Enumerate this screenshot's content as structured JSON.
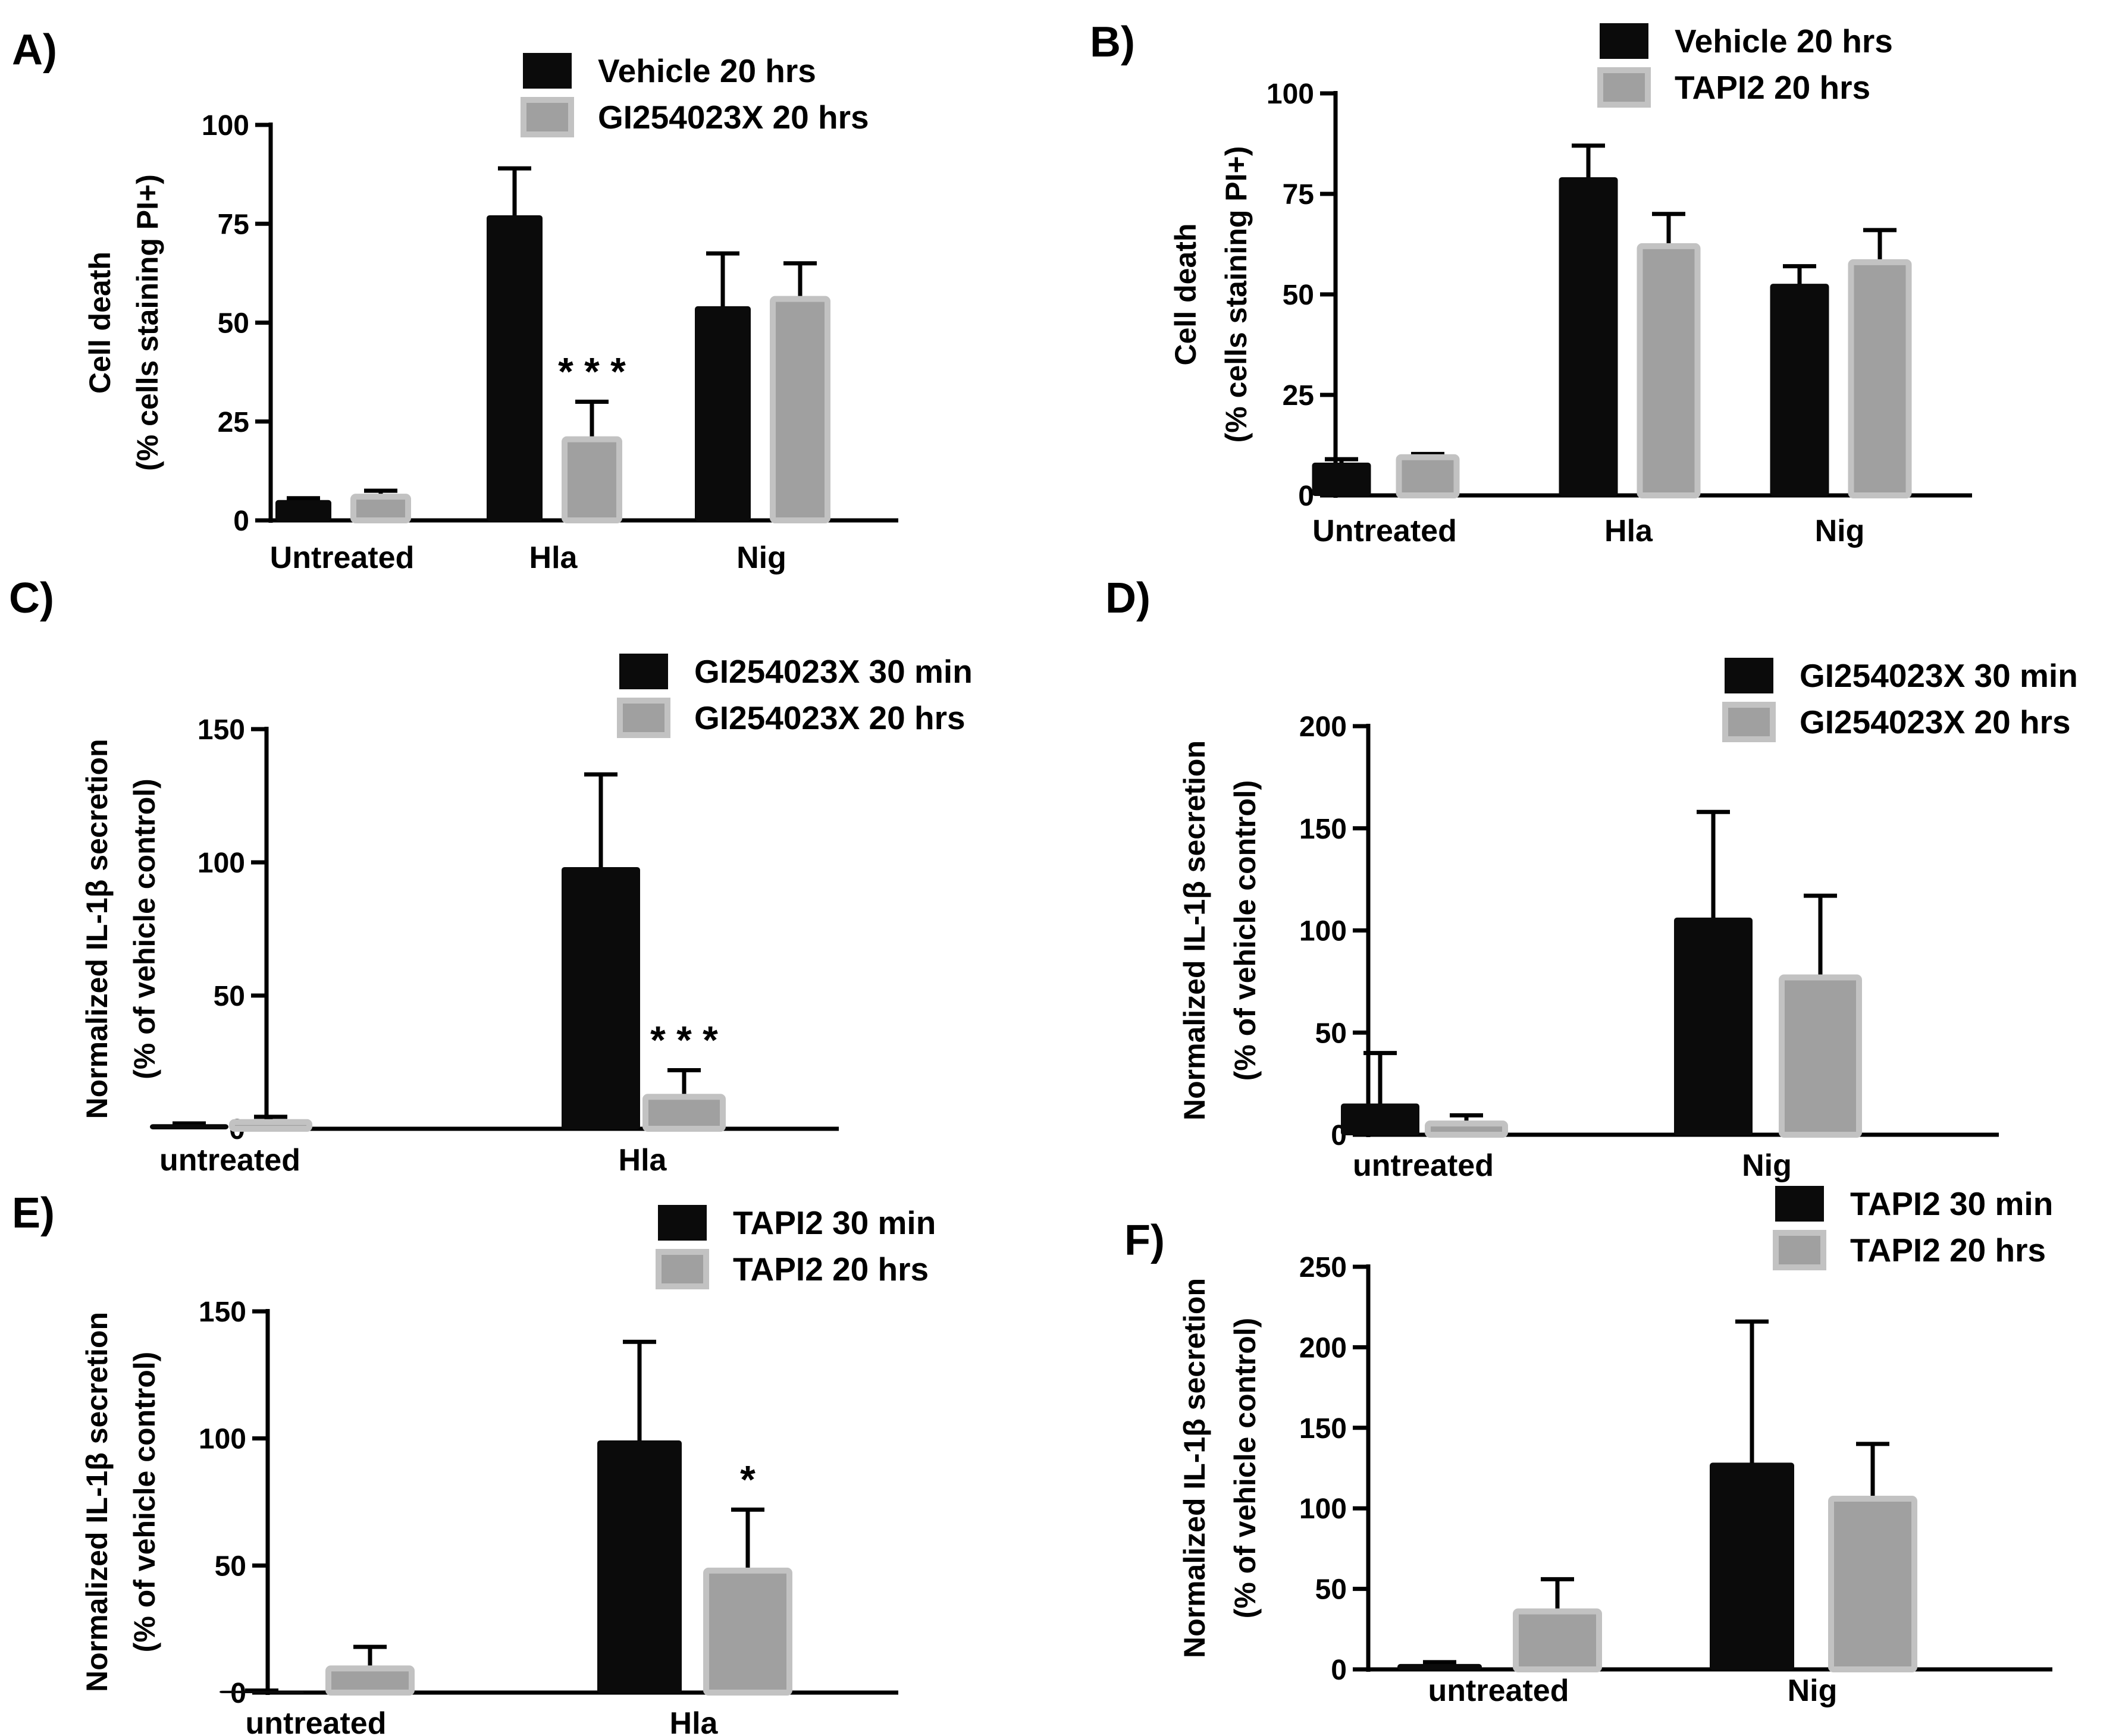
{
  "colors": {
    "series1_fill": "#0b0b0b",
    "series2_fill": "#a0a0a0",
    "series2_edge": "#c2c2c2",
    "axis": "#000000"
  },
  "chart_data": [
    {
      "id": "A",
      "panel_label": "A)",
      "type": "bar",
      "ylabel_line1": "Cell death",
      "ylabel_line2": "(% cells staining PI+)",
      "ylim": [
        0,
        100
      ],
      "yticks": [
        0,
        25,
        50,
        75,
        100
      ],
      "categories": [
        "Untreated",
        "Hla",
        "Nig"
      ],
      "series": [
        {
          "name": "Vehicle 20 hrs",
          "values": [
            5,
            77,
            54
          ],
          "errors": [
            0.6,
            12,
            13.5
          ]
        },
        {
          "name": "GI254023X 20 hrs",
          "values": [
            6,
            20.5,
            56
          ],
          "errors": [
            1.5,
            9.5,
            9
          ]
        }
      ],
      "annotations": [
        {
          "category": "Hla",
          "series": 1,
          "text": "***"
        }
      ]
    },
    {
      "id": "B",
      "panel_label": "B)",
      "type": "bar",
      "ylabel_line1": "Cell death",
      "ylabel_line2": "(% cells staining PI+)",
      "ylim": [
        0,
        100
      ],
      "yticks": [
        0,
        25,
        50,
        75,
        100
      ],
      "categories": [
        "Untreated",
        "Hla",
        "Nig"
      ],
      "series": [
        {
          "name": "Vehicle 20 hrs",
          "values": [
            8,
            79,
            52.5
          ],
          "errors": [
            1,
            8,
            4.5
          ]
        },
        {
          "name": "TAPI2 20 hrs",
          "values": [
            9.5,
            62,
            58
          ],
          "errors": [
            0.8,
            8,
            8
          ]
        }
      ],
      "annotations": []
    },
    {
      "id": "C",
      "panel_label": "C)",
      "type": "bar",
      "ylabel_line1": "Normalized IL-1β secretion",
      "ylabel_line2": "(% of vehicle control)",
      "ylim": [
        0,
        150
      ],
      "yticks": [
        0,
        50,
        100,
        150
      ],
      "categories": [
        "untreated",
        "Hla"
      ],
      "series": [
        {
          "name": "GI254023X 30 min",
          "values": [
            1.5,
            98
          ],
          "errors": [
            0.5,
            35
          ]
        },
        {
          "name": "GI254023X 20 hrs",
          "values": [
            2.5,
            12
          ],
          "errors": [
            2,
            10
          ]
        }
      ],
      "annotations": [
        {
          "category": "Hla",
          "series": 1,
          "text": "***"
        }
      ]
    },
    {
      "id": "D",
      "panel_label": "D)",
      "type": "bar",
      "ylabel_line1": "Normalized IL-1β secretion",
      "ylabel_line2": "(% of vehicle control)",
      "ylim": [
        0,
        200
      ],
      "yticks": [
        0,
        50,
        100,
        150,
        200
      ],
      "categories": [
        "untreated",
        "Nig"
      ],
      "series": [
        {
          "name": "GI254023X 30 min",
          "values": [
            15,
            106
          ],
          "errors": [
            25,
            52
          ]
        },
        {
          "name": "GI254023X 20 hrs",
          "values": [
            5.5,
            77
          ],
          "errors": [
            4,
            40
          ]
        }
      ],
      "annotations": []
    },
    {
      "id": "E",
      "panel_label": "E)",
      "type": "bar",
      "ylabel_line1": "Normalized IL-1β secretion",
      "ylabel_line2": "(% of vehicle control)",
      "ylim": [
        0,
        150
      ],
      "yticks": [
        0,
        50,
        100,
        150
      ],
      "categories": [
        "untreated",
        "Hla"
      ],
      "series": [
        {
          "name": "TAPI2 30 min",
          "values": [
            0.5,
            99
          ],
          "errors": [
            0.3,
            39
          ]
        },
        {
          "name": "TAPI2 20 hrs",
          "values": [
            9.5,
            48
          ],
          "errors": [
            8.5,
            24
          ]
        }
      ],
      "annotations": [
        {
          "category": "Hla",
          "series": 1,
          "text": "*"
        }
      ]
    },
    {
      "id": "F",
      "panel_label": "F)",
      "type": "bar",
      "ylabel_line1": "Normalized IL-1β secretion",
      "ylabel_line2": "(% of vehicle control)",
      "ylim": [
        0,
        250
      ],
      "yticks": [
        0,
        50,
        100,
        150,
        200,
        250
      ],
      "categories": [
        "untreated",
        "Nig"
      ],
      "series": [
        {
          "name": "TAPI2 30 min",
          "values": [
            3,
            128
          ],
          "errors": [
            1.5,
            88
          ]
        },
        {
          "name": "TAPI2 20 hrs",
          "values": [
            36,
            106
          ],
          "errors": [
            20,
            34
          ]
        }
      ],
      "annotations": []
    }
  ]
}
